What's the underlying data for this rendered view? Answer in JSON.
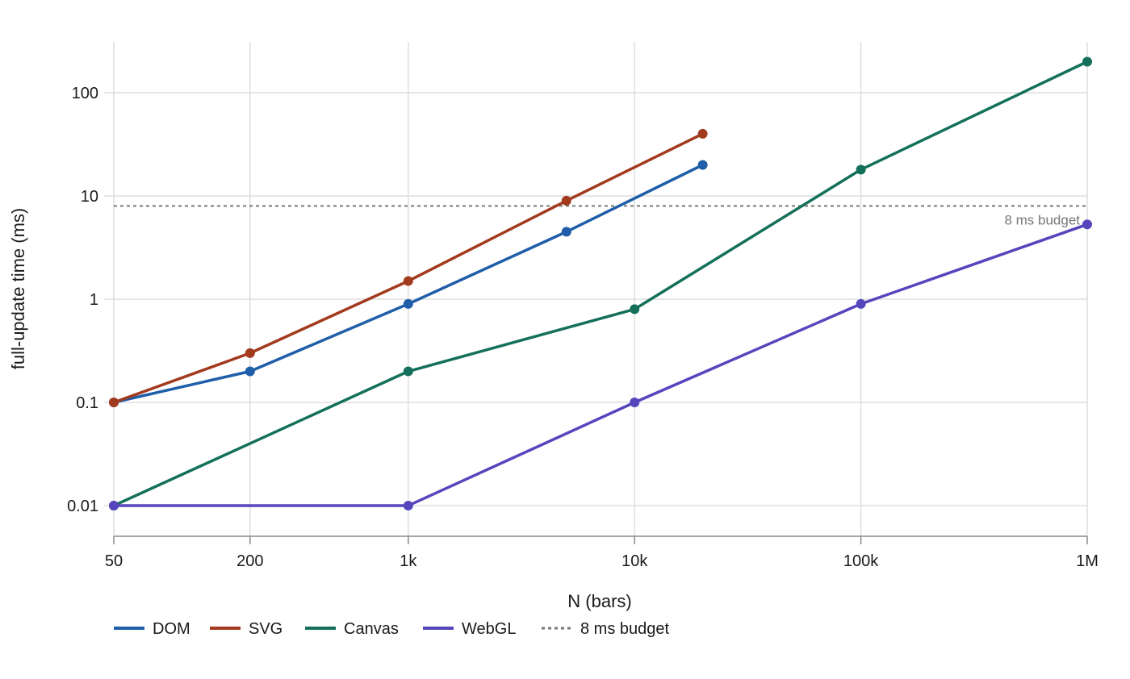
{
  "chart_data": {
    "type": "line",
    "title": "",
    "xlabel": "N (bars)",
    "ylabel": "full-update time (ms)",
    "x_scale": "log",
    "y_scale": "log",
    "xlim": [
      50,
      1000000
    ],
    "ylim": [
      0.005,
      300
    ],
    "x_ticks": [
      {
        "value": 50,
        "label": "50"
      },
      {
        "value": 200,
        "label": "200"
      },
      {
        "value": 1000,
        "label": "1k"
      },
      {
        "value": 10000,
        "label": "10k"
      },
      {
        "value": 100000,
        "label": "100k"
      },
      {
        "value": 1000000,
        "label": "1M"
      }
    ],
    "y_ticks": [
      {
        "value": 0.01,
        "label": "0.01"
      },
      {
        "value": 0.1,
        "label": "0.1"
      },
      {
        "value": 1,
        "label": "1"
      },
      {
        "value": 10,
        "label": "10"
      },
      {
        "value": 100,
        "label": "100"
      }
    ],
    "grid": true,
    "legend_position": "bottom-left",
    "series": [
      {
        "name": "DOM",
        "color": "#1f5ea8",
        "points": [
          [
            50,
            0.1
          ],
          [
            200,
            0.2
          ],
          [
            1000,
            0.9
          ],
          [
            5000,
            4.5
          ],
          [
            20000,
            20
          ]
        ]
      },
      {
        "name": "SVG",
        "color": "#a23a1e",
        "points": [
          [
            50,
            0.1
          ],
          [
            200,
            0.3
          ],
          [
            1000,
            1.5
          ],
          [
            5000,
            9
          ],
          [
            20000,
            40
          ]
        ]
      },
      {
        "name": "Canvas",
        "color": "#14705a",
        "points": [
          [
            50,
            0.01
          ],
          [
            1000,
            0.2
          ],
          [
            10000,
            0.8
          ],
          [
            100000,
            18
          ],
          [
            1000000,
            200
          ]
        ]
      },
      {
        "name": "WebGL",
        "color": "#5546bd",
        "points": [
          [
            50,
            0.01
          ],
          [
            1000,
            0.01
          ],
          [
            10000,
            0.1
          ],
          [
            100000,
            0.9
          ],
          [
            1000000,
            5.3
          ]
        ]
      }
    ],
    "reference_line": {
      "value": 8,
      "label": "8 ms budget",
      "color": "#777777",
      "style": "dotted"
    }
  }
}
